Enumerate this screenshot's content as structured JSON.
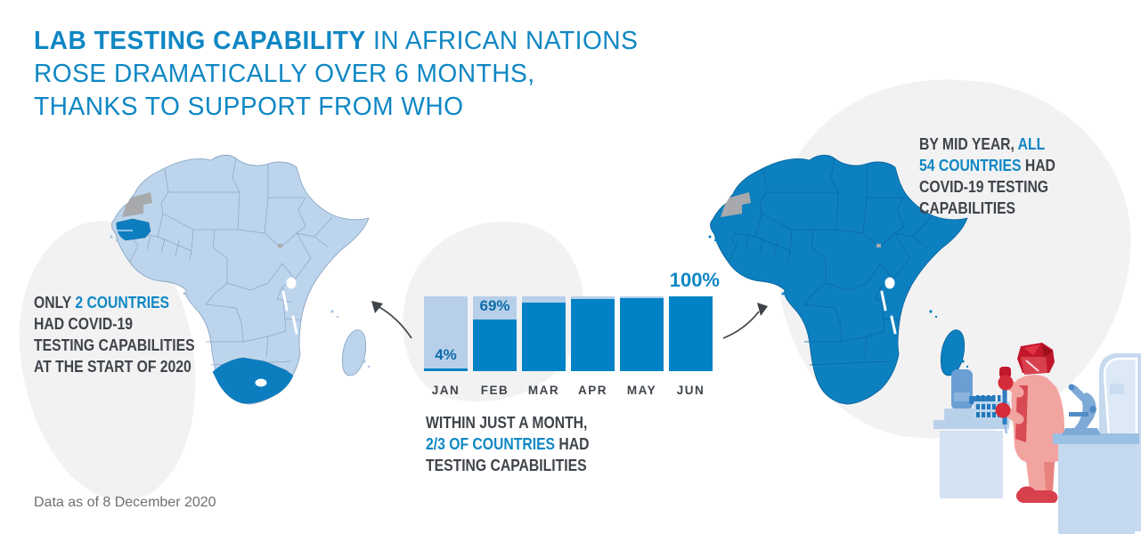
{
  "title": {
    "line1_bold": "LAB TESTING CAPABILITY",
    "line1_rest": " IN AFRICAN NATIONS",
    "line2": "ROSE DRAMATICALLY OVER 6 MONTHS,",
    "line3": "THANKS TO SUPPORT FROM WHO"
  },
  "notes": {
    "start": {
      "line1_pre": "ONLY ",
      "line1_hl": "2 COUNTRIES",
      "line2": "HAD COVID-19",
      "line3": "TESTING CAPABILITIES",
      "line4": "AT THE START OF 2020"
    },
    "month": {
      "line1": "WITHIN JUST A MONTH,",
      "line2_hl": "2/3 OF COUNTRIES",
      "line2_post": " HAD",
      "line3": "TESTING CAPABILITIES"
    },
    "midyear": {
      "line1_pre": "BY MID YEAR, ",
      "line1_hl": "ALL",
      "line2_hl": "54 COUNTRIES",
      "line2_post": " HAD",
      "line3": "COVID-19 TESTING",
      "line4": "CAPABILITIES"
    }
  },
  "footnote": "Data as of 8 December 2020",
  "chart_data": {
    "type": "bar",
    "title": "",
    "xlabel": "",
    "ylabel": "",
    "categories": [
      "JAN",
      "FEB",
      "MAR",
      "APR",
      "MAY",
      "JUN"
    ],
    "values": [
      4,
      69,
      92,
      96,
      98,
      100
    ],
    "unit": "%",
    "value_labels": {
      "JAN": "4%",
      "FEB": "69%",
      "JUN": "100%"
    },
    "ylim": [
      0,
      100
    ],
    "grid": false,
    "legend": null,
    "track_represents": 100
  },
  "illustrations": {
    "map_start": "Africa map, only Senegal and South Africa highlighted",
    "map_end": "Africa map, all 54 countries highlighted",
    "lab_scene": "Lab technician in red PPE pipetting beside analyzer, test-tube rack and microscope"
  },
  "icons": {
    "arrow_to_start_map": "curved-arrow",
    "arrow_to_end_map": "curved-arrow"
  },
  "colors": {
    "accent_blue": "#0f87c4",
    "bar_fill": "#0082c6",
    "bar_track": "#b7cfe9",
    "label_blue": "#0d6cab",
    "map_light_fill": "#bdd5ec",
    "map_light_border": "#89a6c4",
    "map_dark_fill": "#0d80c0",
    "map_dark_border": "#0b669f",
    "highlight_country": "#0c7ec0",
    "neutral_gray": "#a7a9ac",
    "text_dark": "#3f444a",
    "footnote_gray": "#6e6f72",
    "blob_gray": "#f2f2f3",
    "arrow_dark": "#3f444a"
  }
}
